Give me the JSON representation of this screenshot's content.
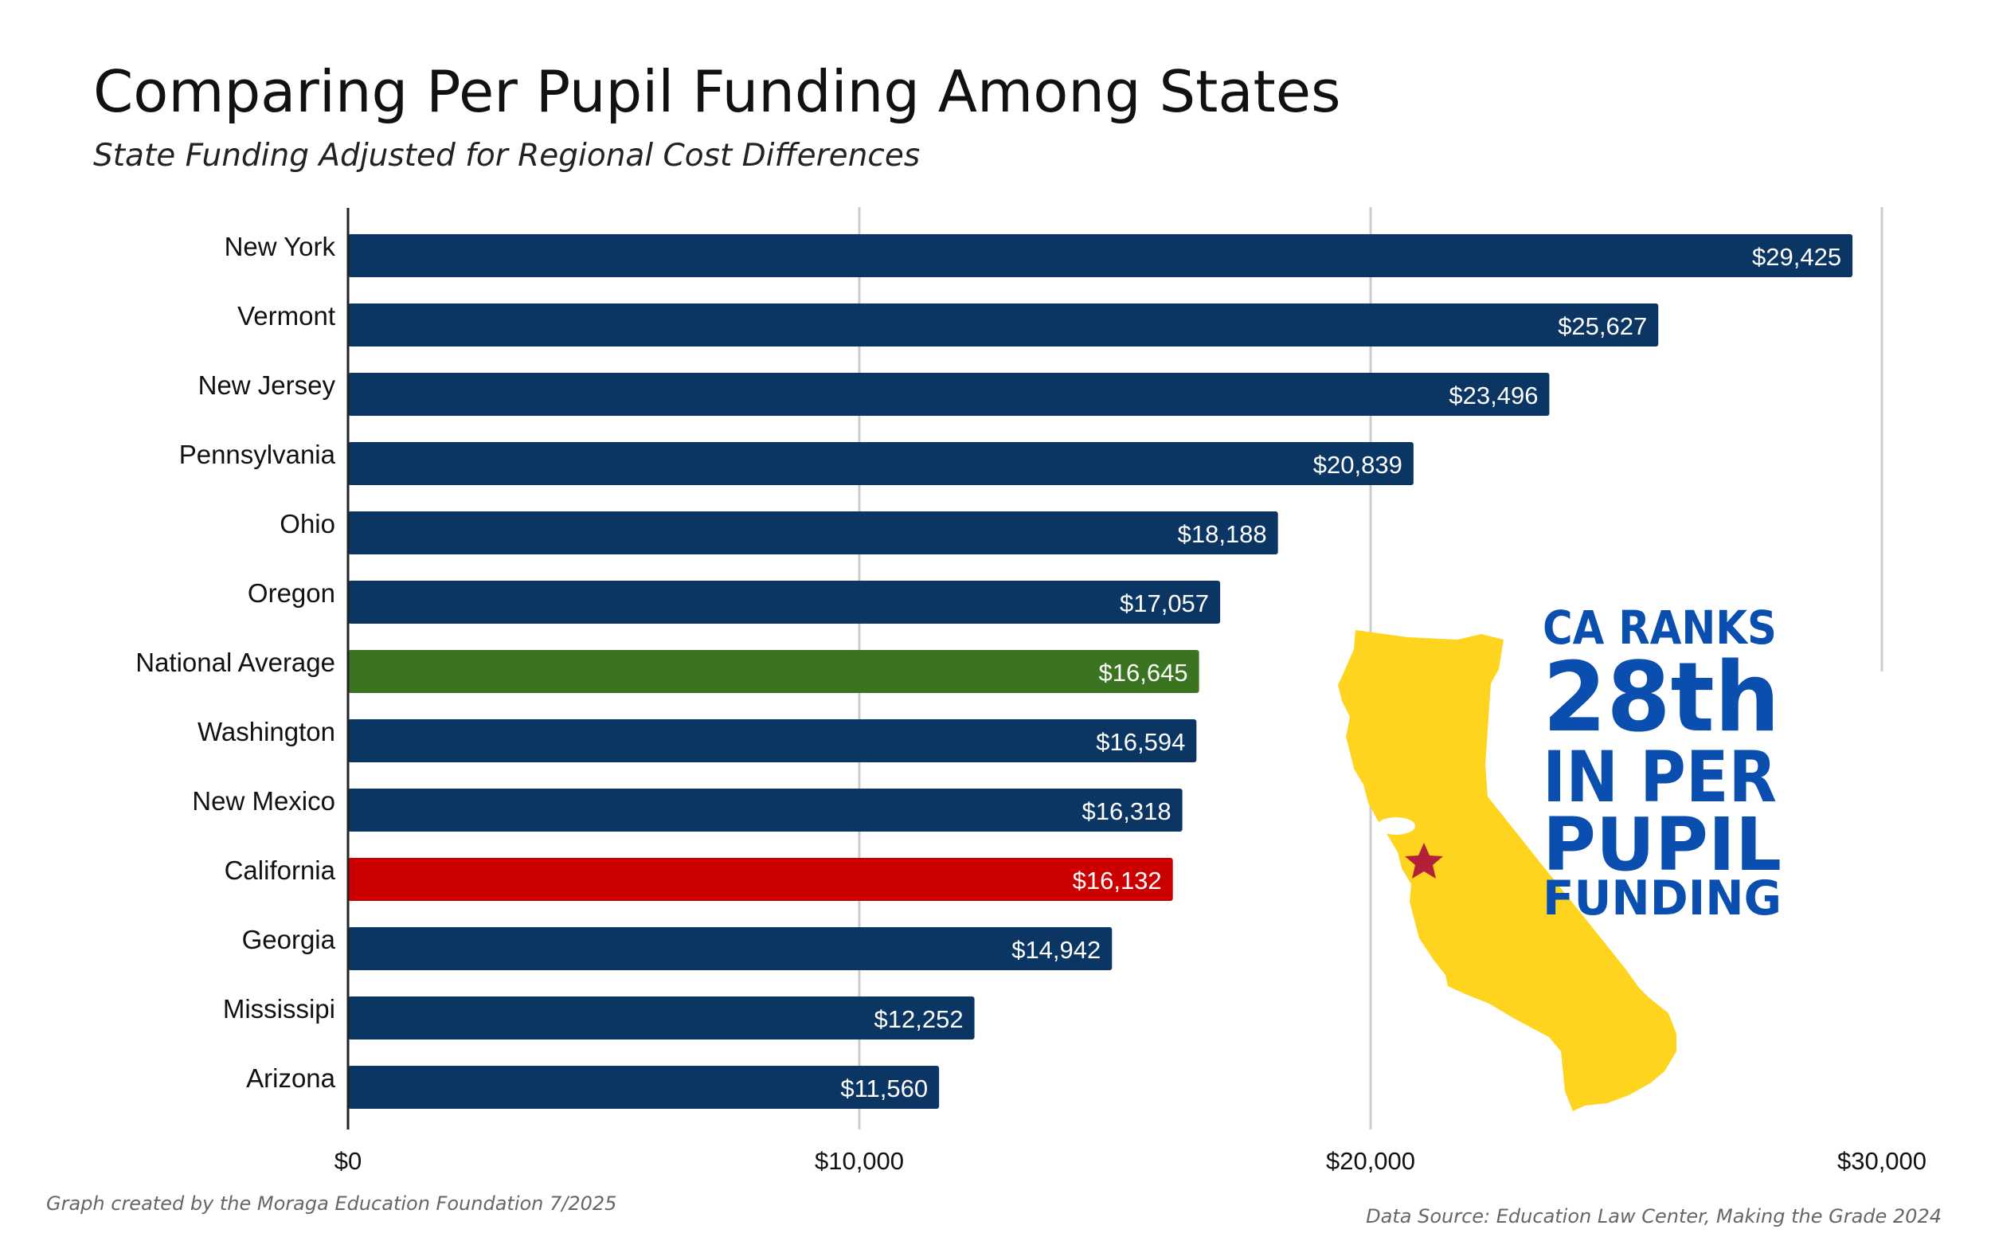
{
  "chart_data": {
    "type": "bar",
    "orientation": "horizontal",
    "title": "Comparing Per Pupil Funding Among States",
    "subtitle": "State Funding Adjusted for Regional Cost Differences",
    "categories": [
      "New York",
      "Vermont",
      "New Jersey",
      "Pennsylvania",
      "Ohio",
      "Oregon",
      "National Average",
      "Washington",
      "New Mexico",
      "California",
      "Georgia",
      "Mississipi",
      "Arizona"
    ],
    "values": [
      29425,
      25627,
      23496,
      20839,
      18188,
      17057,
      16645,
      16594,
      16318,
      16132,
      14942,
      12252,
      11560
    ],
    "value_labels": [
      "$29,425",
      "$25,627",
      "$23,496",
      "$20,839",
      "$18,188",
      "$17,057",
      "$16,645",
      "$16,594",
      "$16,318",
      "$16,132",
      "$14,942",
      "$12,252",
      "$11,560"
    ],
    "highlights": {
      "National Average": "green",
      "California": "red"
    },
    "xlim": [
      0,
      30000
    ],
    "xticks": [
      0,
      10000,
      20000,
      30000
    ],
    "xtick_labels": [
      "$0",
      "$10,000",
      "$20,000",
      "$30,000"
    ],
    "grid": true,
    "xlabel": "",
    "ylabel": ""
  },
  "callout": {
    "lines": [
      "CA RANKS",
      "28th",
      "IN PER",
      "PUPIL",
      "FUNDING"
    ],
    "map_icon": "california-map-with-star-icon"
  },
  "footer": {
    "credit": "Graph created by the Moraga Education Foundation 7/2025",
    "source": "Data Source: Education Law Center, Making the Grade 2024"
  },
  "colors": {
    "bar": "#0b3663",
    "national_average": "#3a7421",
    "california": "#cc0000",
    "callout_text": "#0a4fb0",
    "map_fill": "#ffd41f",
    "star": "#b3203a",
    "grid": "#cccccc",
    "axis": "#222222"
  }
}
